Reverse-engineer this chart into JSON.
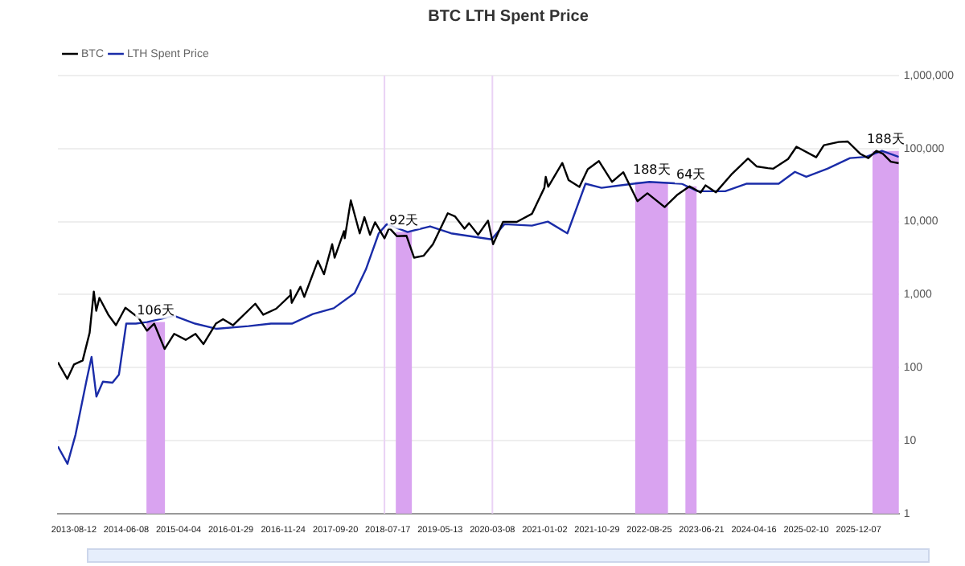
{
  "chart_data": {
    "type": "line",
    "title": "BTC LTH Spent Price",
    "legend": "top left",
    "grid": "y",
    "log": "y",
    "line_style": "solid",
    "xlim": [
      "2013-05-12",
      "2026-07-26"
    ],
    "xticks": [
      {
        "value": "2013-08-12",
        "label": "2013-08-12"
      },
      {
        "value": "2014-06-08",
        "label": "2014-06-08"
      },
      {
        "value": "2015-04-04",
        "label": "2015-04-04"
      },
      {
        "value": "2016-01-29",
        "label": "2016-01-29"
      },
      {
        "value": "2016-11-24",
        "label": "2016-11-24"
      },
      {
        "value": "2017-09-20",
        "label": "2017-09-20"
      },
      {
        "value": "2018-07-17",
        "label": "2018-07-17"
      },
      {
        "value": "2019-05-13",
        "label": "2019-05-13"
      },
      {
        "value": "2020-03-08",
        "label": "2020-03-08"
      },
      {
        "value": "2021-01-02",
        "label": "2021-01-02"
      },
      {
        "value": "2021-10-29",
        "label": "2021-10-29"
      },
      {
        "value": "2022-08-25",
        "label": "2022-08-25"
      },
      {
        "value": "2023-06-21",
        "label": "2023-06-21"
      },
      {
        "value": "2024-04-16",
        "label": "2024-04-16"
      },
      {
        "value": "2025-02-10",
        "label": "2025-02-10"
      },
      {
        "value": "2025-12-07",
        "label": "2025-12-07"
      }
    ],
    "ylim": [
      1,
      1000000
    ],
    "yticks": [
      1,
      10,
      100,
      {
        "value": 1000,
        "label": "1,000"
      },
      {
        "value": 10000,
        "label": "10,000"
      },
      {
        "value": 100000,
        "label": "100,000"
      },
      {
        "value": 1000000,
        "label": "1,000,000"
      }
    ],
    "series": [
      {
        "name": "BTC",
        "color": "#000000",
        "x": [
          "2013-05-12",
          "2013-07-05",
          "2013-08-12",
          "2013-10-01",
          "2013-11-10",
          "2013-12-04",
          "2013-12-18",
          "2014-01-05",
          "2014-02-25",
          "2014-04-10",
          "2014-06-03",
          "2014-08-18",
          "2014-10-05",
          "2014-11-15",
          "2015-01-14",
          "2015-03-10",
          "2015-05-15",
          "2015-07-10",
          "2015-08-25",
          "2015-11-04",
          "2015-12-15",
          "2016-02-10",
          "2016-06-17",
          "2016-08-02",
          "2016-10-15",
          "2016-12-31",
          "2017-01-05",
          "2017-01-12",
          "2017-03-03",
          "2017-03-25",
          "2017-06-11",
          "2017-07-16",
          "2017-09-01",
          "2017-09-15",
          "2017-11-08",
          "2017-11-12",
          "2017-12-17",
          "2018-02-06",
          "2018-03-05",
          "2018-04-06",
          "2018-05-05",
          "2018-06-28",
          "2018-07-25",
          "2018-09-08",
          "2018-11-01",
          "2018-12-15",
          "2019-02-07",
          "2019-04-02",
          "2019-06-26",
          "2019-08-06",
          "2019-09-30",
          "2019-10-26",
          "2019-12-17",
          "2020-02-12",
          "2020-03-12",
          "2020-05-08",
          "2020-07-26",
          "2020-10-21",
          "2020-12-31",
          "2021-01-08",
          "2021-01-22",
          "2021-04-13",
          "2021-05-19",
          "2021-07-20",
          "2021-09-06",
          "2021-11-09",
          "2022-01-23",
          "2022-03-29",
          "2022-06-18",
          "2022-08-14",
          "2022-11-21",
          "2023-01-31",
          "2023-04-13",
          "2023-06-15",
          "2023-07-13",
          "2023-09-11",
          "2023-12-08",
          "2024-03-13",
          "2024-05-01",
          "2024-07-05",
          "2024-08-05",
          "2024-10-29",
          "2024-12-16",
          "2025-04-08",
          "2025-05-22",
          "2025-08-14",
          "2025-10-06",
          "2025-12-16",
          "2026-02-01",
          "2026-03-19",
          "2026-04-25",
          "2026-06-10",
          "2026-07-26"
        ],
        "values": [
          118,
          70,
          110,
          125,
          300,
          1100,
          600,
          900,
          530,
          380,
          660,
          480,
          320,
          400,
          180,
          290,
          240,
          290,
          210,
          400,
          460,
          380,
          750,
          530,
          640,
          960,
          1150,
          770,
          1280,
          930,
          2900,
          1900,
          4900,
          3200,
          7400,
          5900,
          19500,
          6900,
          11500,
          6600,
          9800,
          5900,
          8200,
          6300,
          6400,
          3200,
          3400,
          4900,
          13000,
          11800,
          8000,
          9500,
          6600,
          10300,
          4900,
          9900,
          9900,
          12800,
          29000,
          41000,
          30000,
          63500,
          37000,
          29800,
          52000,
          67500,
          35000,
          47500,
          19000,
          24400,
          15800,
          23100,
          30400,
          25000,
          31300,
          25200,
          44000,
          73000,
          57000,
          54000,
          53000,
          72000,
          106000,
          76000,
          111000,
          123000,
          125000,
          85000,
          74000,
          93000,
          85000,
          66000,
          63000
        ]
      },
      {
        "name": "LTH Spent Price",
        "color": "#1a2ca8",
        "x": [
          "2013-05-12",
          "2013-07-06",
          "2013-08-21",
          "2013-10-25",
          "2013-11-21",
          "2013-12-19",
          "2014-01-25",
          "2014-03-21",
          "2014-04-27",
          "2014-06-08",
          "2014-08-02",
          "2014-10-05",
          "2015-03-10",
          "2015-07-08",
          "2015-11-05",
          "2016-05-09",
          "2016-09-15",
          "2017-01-13",
          "2017-05-13",
          "2017-09-10",
          "2018-01-08",
          "2018-03-13",
          "2018-05-26",
          "2018-07-11",
          "2018-11-08",
          "2019-03-17",
          "2019-07-15",
          "2020-03-03",
          "2020-05-16",
          "2020-10-21",
          "2021-01-20",
          "2021-05-12",
          "2021-08-24",
          "2021-11-24",
          "2022-05-27",
          "2022-08-25",
          "2023-02-26",
          "2023-05-30",
          "2023-11-03",
          "2024-03-03",
          "2024-09-05",
          "2024-12-07",
          "2025-02-10",
          "2025-06-11",
          "2025-10-19",
          "2026-01-18",
          "2026-04-20",
          "2026-07-26"
        ],
        "values": [
          8.3,
          4.8,
          12,
          70,
          140,
          40,
          64,
          62,
          80,
          400,
          400,
          420,
          510,
          400,
          340,
          370,
          400,
          400,
          540,
          650,
          1050,
          2200,
          6900,
          9200,
          7200,
          8600,
          6900,
          5700,
          9200,
          8800,
          10000,
          6900,
          33000,
          29000,
          33000,
          35000,
          33000,
          26000,
          26000,
          33000,
          33000,
          48000,
          41000,
          53000,
          74000,
          77000,
          93000,
          77000
        ]
      }
    ],
    "bands": [
      {
        "axis": "x",
        "from": "2014-10-02",
        "to": "2015-01-16",
        "label": "106天",
        "color": "#d9a3f0"
      },
      {
        "axis": "x",
        "from": "2018-09-01",
        "to": "2018-12-02",
        "label": "92天",
        "color": "#d9a3f0"
      },
      {
        "axis": "x",
        "from": "2022-06-05",
        "to": "2022-12-10",
        "label": "188天",
        "color": "#d9a3f0"
      },
      {
        "axis": "x",
        "from": "2023-03-20",
        "to": "2023-05-23",
        "label": "64天",
        "color": "#d9a3f0"
      },
      {
        "axis": "x",
        "from": "2026-02-25",
        "to": "2026-07-26",
        "label": "188天",
        "color": "#d9a3f0"
      }
    ],
    "ref_lines": [
      {
        "axis": "x",
        "value": "2018-06-28",
        "color": "#ead2f5"
      },
      {
        "axis": "x",
        "value": "2020-03-08",
        "color": "#ead2f5"
      }
    ]
  }
}
